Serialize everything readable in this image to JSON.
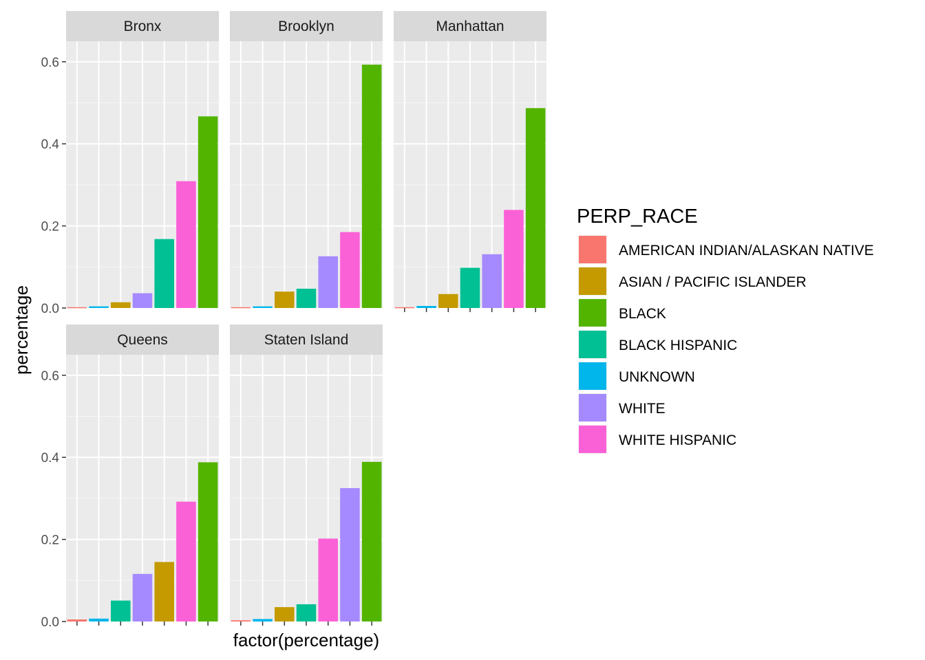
{
  "chart_data": {
    "type": "bar",
    "facet_by": "borough",
    "xlabel": "factor(percentage)",
    "ylabel": "percentage",
    "ylim": [
      0,
      0.65
    ],
    "yticks": [
      "0.0",
      "0.2",
      "0.4",
      "0.6"
    ],
    "y_tick_values": [
      0,
      0.2,
      0.4,
      0.6
    ],
    "grid": true,
    "legend": {
      "title": "PERP_RACE",
      "position": "right",
      "entries": [
        {
          "label": "AMERICAN INDIAN/ALASKAN NATIVE",
          "color": "#F8766D"
        },
        {
          "label": "ASIAN / PACIFIC ISLANDER",
          "color": "#C49A00"
        },
        {
          "label": "BLACK",
          "color": "#53B400"
        },
        {
          "label": "BLACK HISPANIC",
          "color": "#00C094"
        },
        {
          "label": "UNKNOWN",
          "color": "#00B6EB"
        },
        {
          "label": "WHITE",
          "color": "#A58AFF"
        },
        {
          "label": "WHITE HISPANIC",
          "color": "#FB61D7"
        }
      ]
    },
    "panels": [
      {
        "name": "Bronx",
        "bars": [
          {
            "race": "AMERICAN INDIAN/ALASKAN NATIVE",
            "value": 0.002
          },
          {
            "race": "UNKNOWN",
            "value": 0.004
          },
          {
            "race": "ASIAN / PACIFIC ISLANDER",
            "value": 0.014
          },
          {
            "race": "WHITE",
            "value": 0.036
          },
          {
            "race": "BLACK HISPANIC",
            "value": 0.168
          },
          {
            "race": "WHITE HISPANIC",
            "value": 0.309
          },
          {
            "race": "BLACK",
            "value": 0.467
          }
        ]
      },
      {
        "name": "Brooklyn",
        "bars": [
          {
            "race": "AMERICAN INDIAN/ALASKAN NATIVE",
            "value": 0.002
          },
          {
            "race": "UNKNOWN",
            "value": 0.004
          },
          {
            "race": "ASIAN / PACIFIC ISLANDER",
            "value": 0.04
          },
          {
            "race": "BLACK HISPANIC",
            "value": 0.047
          },
          {
            "race": "WHITE",
            "value": 0.126
          },
          {
            "race": "WHITE HISPANIC",
            "value": 0.185
          },
          {
            "race": "BLACK",
            "value": 0.593
          }
        ]
      },
      {
        "name": "Manhattan",
        "bars": [
          {
            "race": "AMERICAN INDIAN/ALASKAN NATIVE",
            "value": 0.002
          },
          {
            "race": "UNKNOWN",
            "value": 0.005
          },
          {
            "race": "ASIAN / PACIFIC ISLANDER",
            "value": 0.034
          },
          {
            "race": "BLACK HISPANIC",
            "value": 0.098
          },
          {
            "race": "WHITE",
            "value": 0.131
          },
          {
            "race": "WHITE HISPANIC",
            "value": 0.239
          },
          {
            "race": "BLACK",
            "value": 0.487
          }
        ]
      },
      {
        "name": "Queens",
        "bars": [
          {
            "race": "AMERICAN INDIAN/ALASKAN NATIVE",
            "value": 0.005
          },
          {
            "race": "UNKNOWN",
            "value": 0.007
          },
          {
            "race": "BLACK HISPANIC",
            "value": 0.051
          },
          {
            "race": "WHITE",
            "value": 0.116
          },
          {
            "race": "ASIAN / PACIFIC ISLANDER",
            "value": 0.145
          },
          {
            "race": "WHITE HISPANIC",
            "value": 0.292
          },
          {
            "race": "BLACK",
            "value": 0.388
          }
        ]
      },
      {
        "name": "Staten Island",
        "bars": [
          {
            "race": "AMERICAN INDIAN/ALASKAN NATIVE",
            "value": 0.003
          },
          {
            "race": "UNKNOWN",
            "value": 0.006
          },
          {
            "race": "ASIAN / PACIFIC ISLANDER",
            "value": 0.035
          },
          {
            "race": "BLACK HISPANIC",
            "value": 0.042
          },
          {
            "race": "WHITE HISPANIC",
            "value": 0.202
          },
          {
            "race": "WHITE",
            "value": 0.325
          },
          {
            "race": "BLACK",
            "value": 0.389
          }
        ]
      }
    ]
  }
}
